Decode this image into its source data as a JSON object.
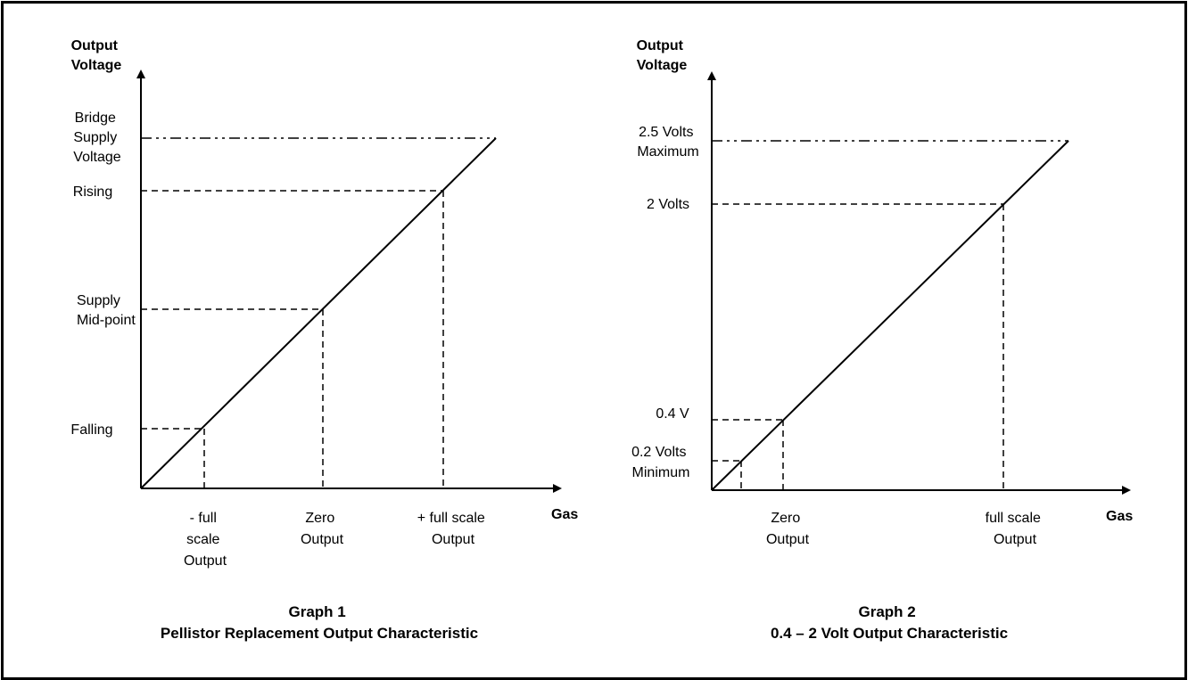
{
  "graph1": {
    "y_axis_label": [
      "Output",
      "Voltage"
    ],
    "x_axis_label": "Gas",
    "levels": {
      "bridge_supply": [
        "Bridge",
        "Supply",
        "Voltage"
      ],
      "rising": "Rising",
      "mid": [
        "Supply",
        "Mid-point"
      ],
      "falling": "Falling"
    },
    "x_marks": {
      "neg_full": [
        "- full",
        "scale",
        "Output"
      ],
      "zero": [
        "Zero",
        "Output"
      ],
      "pos_full": [
        "+ full scale",
        "Output"
      ]
    },
    "caption": [
      "Graph 1",
      "Pellistor Replacement Output Characteristic"
    ]
  },
  "graph2": {
    "y_axis_label": [
      "Output",
      "Voltage"
    ],
    "x_axis_label": "Gas",
    "levels": {
      "max": [
        "2.5 Volts",
        "Maximum"
      ],
      "two_volts": "2 Volts",
      "zero_four": "0.4 V",
      "min": [
        "0.2 Volts",
        "Minimum"
      ]
    },
    "x_marks": {
      "zero": [
        "Zero",
        "Output"
      ],
      "full": [
        "full scale",
        "Output"
      ]
    },
    "caption": [
      "Graph 2",
      "0.4 – 2 Volt Output Characteristic"
    ]
  }
}
